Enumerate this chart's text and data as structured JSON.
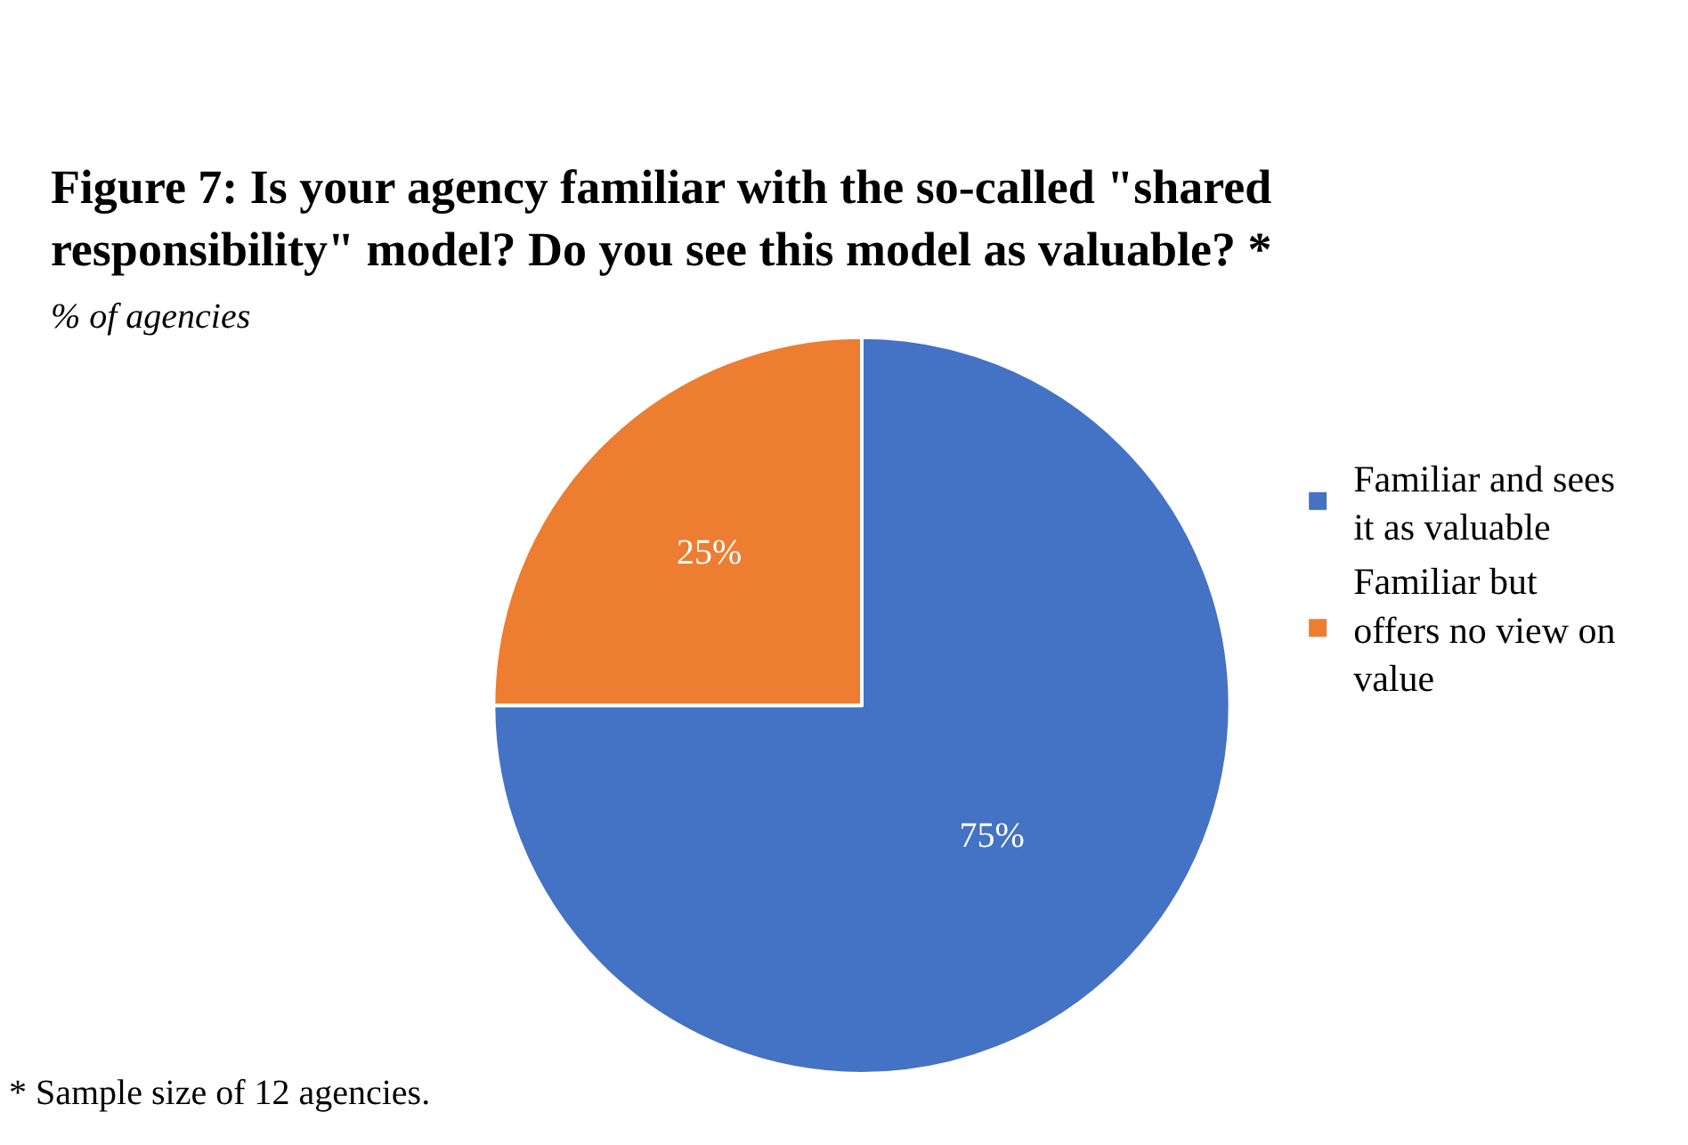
{
  "chart_data": {
    "type": "pie",
    "title": "Figure 7: Is your agency familiar with the so-called \"shared responsibility\" model? Do you see this model as valuable? *",
    "subtitle": "% of agencies",
    "categories": [
      "Familiar and sees it as valuable",
      "Familiar but offers no view on value"
    ],
    "values": [
      75,
      25
    ],
    "colors": [
      "#4472c4",
      "#ed7d31"
    ],
    "value_labels": [
      "75%",
      "25%"
    ],
    "legend": "right",
    "annotations": [
      "* Sample size of 12 agencies."
    ]
  }
}
